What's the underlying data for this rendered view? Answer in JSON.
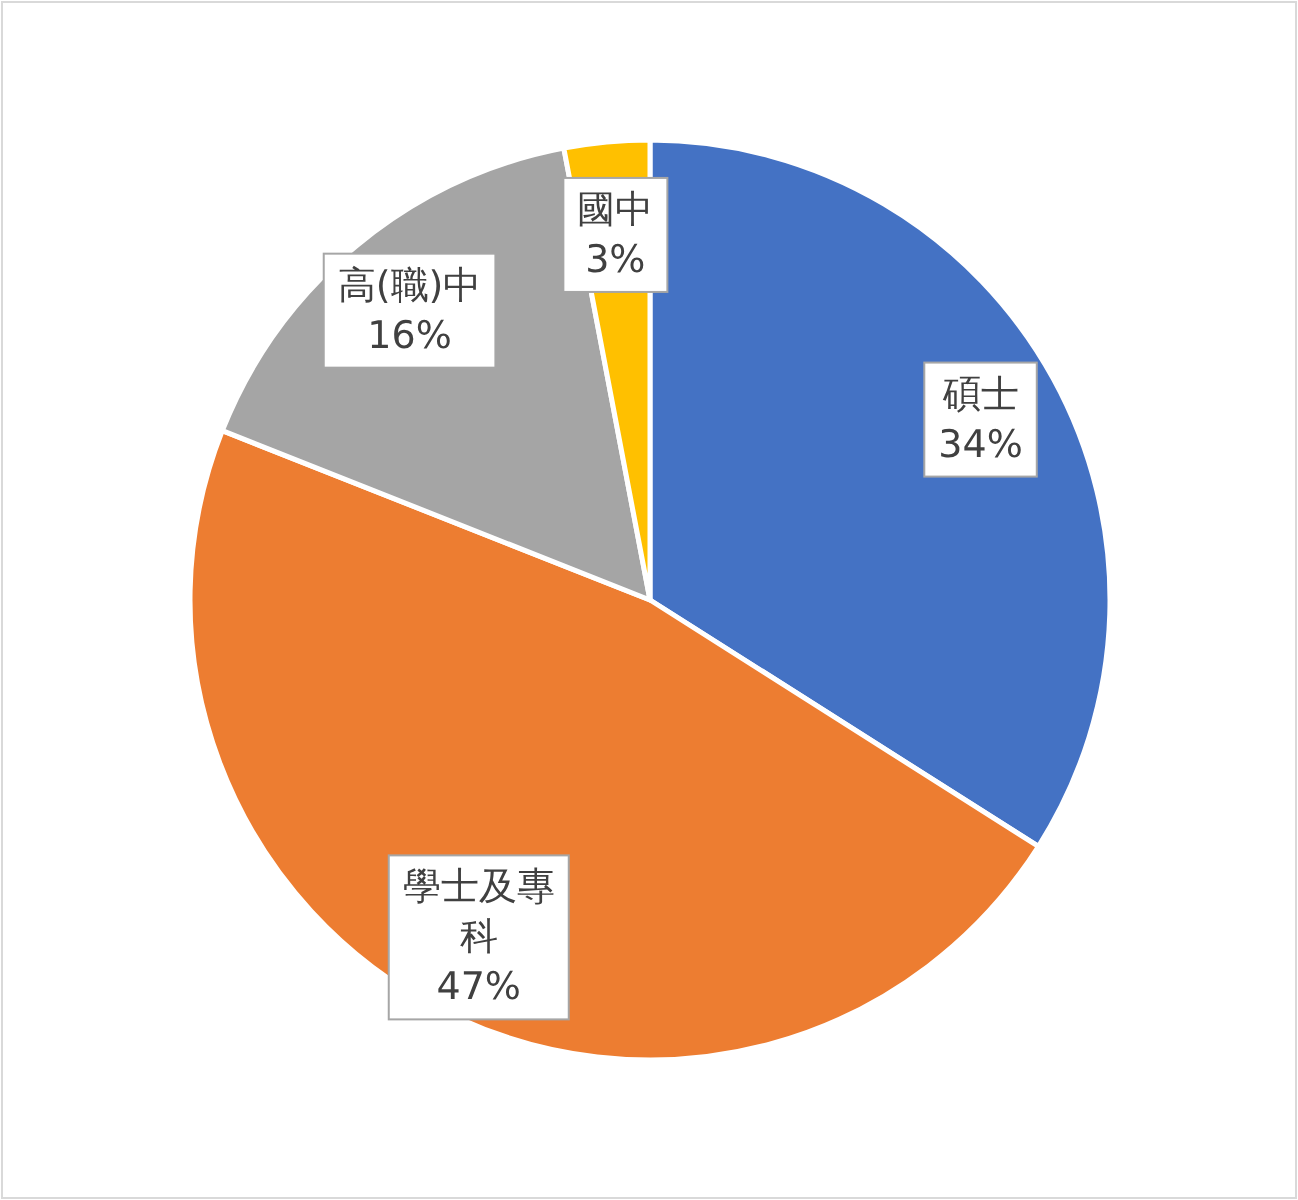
{
  "chart_data": {
    "type": "pie",
    "categories": [
      "碩士",
      "學士及專科",
      "高(職)中",
      "國中"
    ],
    "values": [
      34,
      47,
      16,
      3
    ],
    "colors": [
      "#4472c4",
      "#ed7d31",
      "#a5a5a5",
      "#ffc000"
    ],
    "value_labels": [
      "34%",
      "47%",
      "16%",
      "3%"
    ]
  }
}
